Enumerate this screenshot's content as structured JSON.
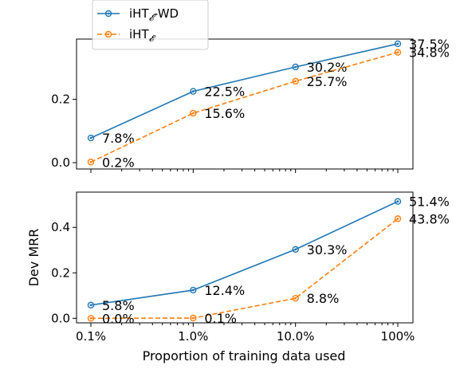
{
  "chart_data": {
    "type": "line",
    "xscale": "log",
    "categories": [
      "0.1%",
      "1.0%",
      "10.0%",
      "100%"
    ],
    "x": [
      0.1,
      1.0,
      10.0,
      100
    ],
    "xlabel": "Proportion of training data used",
    "legend": {
      "placement": "top",
      "entries": [
        {
          "base": "iHT",
          "sub": "𝓔",
          "suffix": "-WD"
        },
        {
          "base": "iHT",
          "sub": "𝓔",
          "suffix": ""
        }
      ]
    },
    "colors": {
      "series1": "#1f77b4",
      "series2": "#ff7f0e"
    },
    "panels": [
      {
        "ylabel": "",
        "ylim": [
          -0.02,
          0.39
        ],
        "yticks": [
          0.0,
          0.2
        ],
        "ytick_labels": [
          "0.0",
          "0.2"
        ],
        "series": [
          {
            "values": [
              0.078,
              0.225,
              0.302,
              0.375
            ],
            "labels": [
              "7.8%",
              "22.5%",
              "30.2%",
              "37.5%"
            ]
          },
          {
            "values": [
              0.002,
              0.156,
              0.257,
              0.348
            ],
            "labels": [
              "0.2%",
              "15.6%",
              "25.7%",
              "34.8%"
            ]
          }
        ]
      },
      {
        "ylabel": "Dev MRR",
        "ylim": [
          -0.02,
          0.555
        ],
        "yticks": [
          0.0,
          0.2,
          0.4
        ],
        "ytick_labels": [
          "0.0",
          "0.2",
          "0.4"
        ],
        "series": [
          {
            "values": [
              0.058,
              0.124,
              0.303,
              0.514
            ],
            "labels": [
              "5.8%",
              "12.4%",
              "30.3%",
              "51.4%"
            ]
          },
          {
            "values": [
              0.0,
              0.001,
              0.088,
              0.438
            ],
            "labels": [
              "0.0%",
              "0.1%",
              "8.8%",
              "43.8%"
            ]
          }
        ]
      }
    ]
  }
}
